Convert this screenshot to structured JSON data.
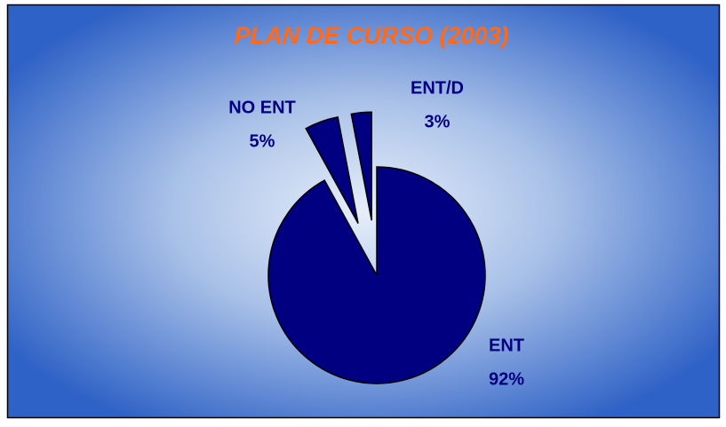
{
  "chart_data": {
    "type": "pie",
    "title": "PLAN DE CURSO (2003)",
    "categories": [
      "ENT",
      "NO ENT",
      "ENT/D"
    ],
    "values": [
      92,
      5,
      3
    ],
    "value_labels": [
      "92%",
      "5%",
      "3%"
    ],
    "color": "#000080"
  }
}
